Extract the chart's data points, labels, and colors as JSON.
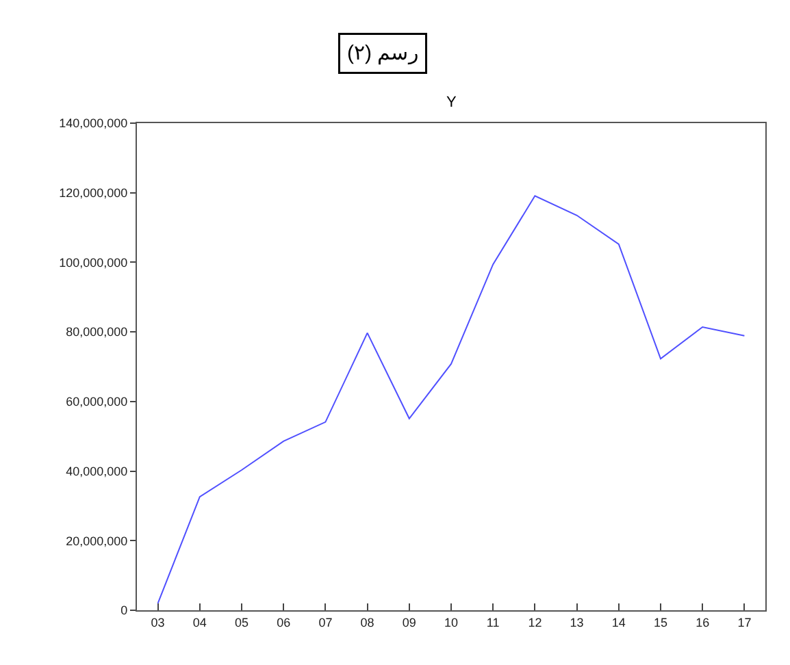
{
  "chart_data": {
    "type": "line",
    "title": "رسم (٢)",
    "subtitle": "Y",
    "categories": [
      "03",
      "04",
      "05",
      "06",
      "07",
      "08",
      "09",
      "10",
      "11",
      "12",
      "13",
      "14",
      "15",
      "16",
      "17"
    ],
    "series": [
      {
        "color": "#5050ff",
        "values": [
          2000000,
          32600000,
          40300000,
          48600000,
          54100000,
          79700000,
          55100000,
          70800000,
          99400000,
          119100000,
          113500000,
          105200000,
          72300000,
          81400000,
          78900000
        ]
      }
    ],
    "ylim": [
      0,
      140000000
    ],
    "yticks": [
      0,
      {
        "value": 20000000,
        "label": "20,000,000"
      },
      {
        "value": 40000000,
        "label": "40,000,000"
      },
      {
        "value": 60000000,
        "label": "60,000,000"
      },
      {
        "value": 80000000,
        "label": "80,000,000"
      },
      {
        "value": 100000000,
        "label": "100,000,000"
      },
      {
        "value": 120000000,
        "label": "120,000,000"
      },
      {
        "value": 140000000,
        "label": "140,000,000"
      }
    ],
    "legend": false,
    "marker": "none",
    "line_style": "solid"
  }
}
